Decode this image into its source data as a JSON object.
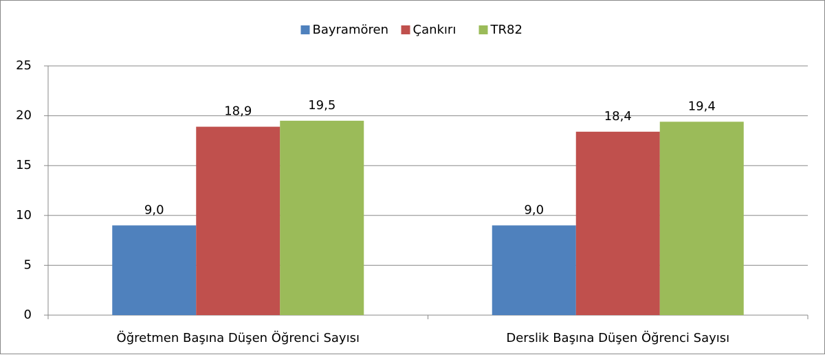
{
  "chart_data": {
    "type": "bar",
    "categories": [
      "Öğretmen Başına Düşen Öğrenci Sayısı",
      "Derslik Başına Düşen Öğrenci Sayısı"
    ],
    "series": [
      {
        "name": "Bayramören",
        "color": "#4f81bd",
        "values": [
          9.0,
          9.0
        ],
        "value_labels": [
          "9,0",
          "9,0"
        ]
      },
      {
        "name": "Çankırı",
        "color": "#c0504d",
        "values": [
          18.9,
          18.4
        ],
        "value_labels": [
          "18,9",
          "18,4"
        ]
      },
      {
        "name": "TR82",
        "color": "#9bbb59",
        "values": [
          19.5,
          19.4
        ],
        "value_labels": [
          "19,5",
          "19,4"
        ]
      }
    ],
    "ylim": [
      0,
      25
    ],
    "yticks": [
      0,
      5,
      10,
      15,
      20,
      25
    ],
    "grid": true,
    "legend": "top"
  }
}
